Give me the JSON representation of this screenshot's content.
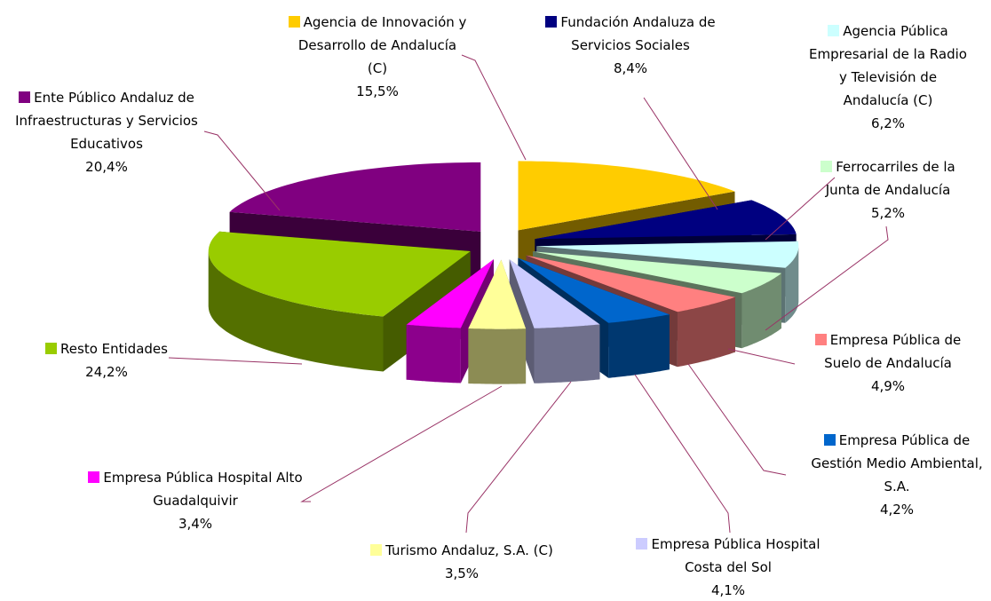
{
  "chart_data": {
    "type": "pie",
    "categories": [
      "Agencia de Innovación y Desarrollo de Andalucía (C)",
      "Fundación Andaluza de Servicios Sociales",
      "Agencia Pública Empresarial de la Radio y Televisión de Andalucía (C)",
      "Ferrocarriles de la Junta de Andalucía",
      "Empresa Pública de Suelo de Andalucía",
      "Empresa Pública de Gestión Medio Ambiental, S.A.",
      "Empresa Pública Hospital Costa del Sol",
      "Turismo Andaluz, S.A. (C)",
      "Empresa Pública Hospital Alto Guadalquivir",
      "Resto Entidades",
      "Ente Público Andaluz de Infraestructuras y Servicios Educativos"
    ],
    "values": [
      15.5,
      8.4,
      6.2,
      5.2,
      4.9,
      4.2,
      4.1,
      3.5,
      3.4,
      24.2,
      20.4
    ],
    "value_labels": [
      "15,5%",
      "8,4%",
      "6,2%",
      "5,2%",
      "4,9%",
      "4,2%",
      "4,1%",
      "3,5%",
      "3,4%",
      "24,2%",
      "20,4%"
    ],
    "colors": [
      "#ffcc00",
      "#000080",
      "#ccffff",
      "#ccffcc",
      "#ff8080",
      "#0066cc",
      "#ccccff",
      "#ffff99",
      "#ff00ff",
      "#99cc00",
      "#800080"
    ]
  }
}
